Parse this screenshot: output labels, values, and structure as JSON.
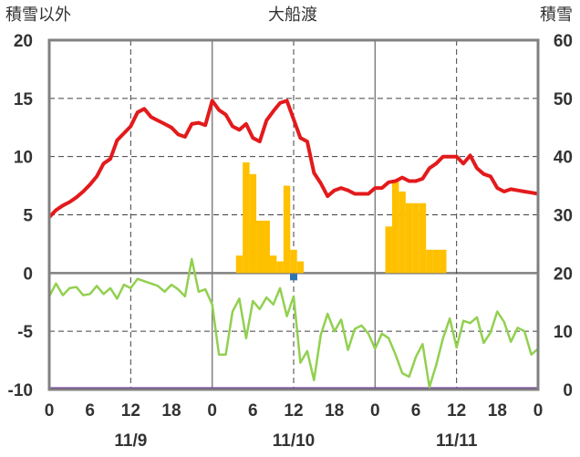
{
  "chart_data": {
    "type": "bar",
    "title": "大船渡",
    "ylabel_left": "積雪以外",
    "ylabel_right": "積雪",
    "ylim_left": [
      -10,
      20
    ],
    "ylim_right": [
      0,
      60
    ],
    "yticks_left": [
      "20",
      "15",
      "10",
      "5",
      "0",
      "-5",
      "-10"
    ],
    "yticks_right": [
      "60",
      "50",
      "40",
      "30",
      "20",
      "10",
      "0"
    ],
    "x_ticks": [
      "0",
      "6",
      "12",
      "18",
      "0",
      "6",
      "12",
      "18",
      "0",
      "6",
      "12",
      "18",
      "0"
    ],
    "date_labels": [
      "11/9",
      "11/10",
      "11/11"
    ],
    "grid": true,
    "colors": {
      "temperature": "#e31a1c",
      "snow_depth": "#ffc000",
      "green_series": "#92d050",
      "baseline": "#7030a0",
      "marker": "#2e75b6",
      "frame": "#808080",
      "grid": "#404040"
    },
    "series": [
      {
        "key": "temperature",
        "hours": [
          0,
          1,
          2,
          3,
          4,
          5,
          6,
          7,
          8,
          9,
          10,
          11,
          12,
          13,
          14,
          15,
          16,
          17,
          18,
          19,
          20,
          21,
          22,
          23,
          24,
          25,
          26,
          27,
          28,
          29,
          30,
          31,
          32,
          33,
          34,
          35,
          36,
          37,
          38,
          39,
          40,
          41,
          42,
          43,
          44,
          45,
          46,
          47,
          48,
          49,
          50,
          51,
          52,
          53,
          54,
          55,
          56,
          57,
          58,
          59,
          60,
          61,
          62,
          63,
          64,
          65,
          66,
          67,
          68,
          69,
          70,
          71,
          72
        ],
        "values": [
          4.8,
          5.4,
          5.8,
          6.1,
          6.5,
          7.0,
          7.6,
          8.3,
          9.4,
          9.8,
          11.4,
          12.0,
          12.6,
          13.8,
          14.1,
          13.4,
          13.1,
          12.8,
          12.5,
          11.9,
          11.7,
          12.8,
          12.9,
          12.7,
          14.8,
          14.0,
          13.6,
          12.6,
          12.3,
          12.8,
          11.6,
          11.3,
          13.1,
          13.9,
          14.6,
          14.8,
          13.2,
          11.6,
          11.3,
          8.6,
          7.7,
          6.6,
          7.1,
          7.3,
          7.1,
          6.8,
          6.8,
          6.8,
          7.3,
          7.3,
          7.8,
          7.9,
          8.2,
          7.9,
          7.9,
          8.1,
          9.0,
          9.4,
          10.0,
          10.0,
          10.0,
          9.4,
          10.1,
          9.0,
          8.5,
          8.3,
          7.3,
          7.0,
          7.2,
          7.1,
          7.0,
          6.9,
          6.8
        ]
      },
      {
        "key": "green_series",
        "hours": [
          0,
          1,
          2,
          3,
          4,
          5,
          6,
          7,
          8,
          9,
          10,
          11,
          12,
          13,
          14,
          15,
          16,
          17,
          18,
          19,
          20,
          21,
          22,
          23,
          24,
          25,
          26,
          27,
          28,
          29,
          30,
          31,
          32,
          33,
          34,
          35,
          36,
          37,
          38,
          39,
          40,
          41,
          42,
          43,
          44,
          45,
          46,
          47,
          48,
          49,
          50,
          51,
          52,
          53,
          54,
          55,
          56,
          57,
          58,
          59,
          60,
          61,
          62,
          63,
          64,
          65,
          66,
          67,
          68,
          69,
          70,
          71,
          72
        ],
        "values": [
          -2.0,
          -0.9,
          -1.9,
          -1.3,
          -1.2,
          -1.9,
          -1.8,
          -1.1,
          -1.8,
          -1.3,
          -2.2,
          -1.0,
          -1.3,
          -0.5,
          -0.7,
          -0.9,
          -1.1,
          -1.6,
          -1.0,
          -1.4,
          -2.0,
          1.2,
          -1.6,
          -1.4,
          -2.7,
          -7.0,
          -7.0,
          -3.3,
          -2.2,
          -5.6,
          -2.4,
          -3.1,
          -2.1,
          -2.7,
          -1.3,
          -3.7,
          -2.0,
          -7.7,
          -6.7,
          -9.2,
          -5.3,
          -3.5,
          -5.0,
          -4.0,
          -6.6,
          -4.8,
          -4.5,
          -5.2,
          -6.5,
          -5.2,
          -5.6,
          -7.0,
          -8.6,
          -8.9,
          -7.2,
          -6.1,
          -9.8,
          -7.9,
          -5.6,
          -3.9,
          -6.4,
          -4.1,
          -4.3,
          -3.8,
          -6.0,
          -5.1,
          -3.3,
          -4.2,
          -5.9,
          -4.7,
          -5.0,
          -7.0,
          -6.5
        ]
      },
      {
        "key": "snow_depth",
        "hours": [
          28,
          29,
          30,
          31,
          32,
          33,
          34,
          35,
          36,
          37,
          50,
          51,
          52,
          53,
          54,
          55,
          56,
          57,
          58
        ],
        "values": [
          23,
          39,
          37,
          29,
          29,
          23,
          22,
          35,
          24,
          22,
          28,
          36,
          34,
          32,
          32,
          32,
          24,
          24,
          24
        ]
      }
    ],
    "marker_hour": 36,
    "marker_value": 0
  }
}
